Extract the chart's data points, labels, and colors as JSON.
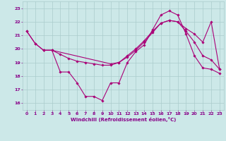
{
  "xlabel": "Windchill (Refroidissement éolien,°C)",
  "background_color": "#cce8e8",
  "line_color": "#aa0077",
  "grid_color": "#aacccc",
  "xlim": [
    -0.5,
    23.5
  ],
  "ylim": [
    15.5,
    23.5
  ],
  "xticks": [
    0,
    1,
    2,
    3,
    4,
    5,
    6,
    7,
    8,
    9,
    10,
    11,
    12,
    13,
    14,
    15,
    16,
    17,
    18,
    19,
    20,
    21,
    22,
    23
  ],
  "yticks": [
    16,
    17,
    18,
    19,
    20,
    21,
    22,
    23
  ],
  "series1_x": [
    0,
    1,
    2,
    3,
    4,
    5,
    6,
    7,
    8,
    9,
    10,
    11,
    12,
    13,
    14,
    15,
    16,
    17,
    18,
    19,
    20,
    21,
    22,
    23
  ],
  "series1_y": [
    21.3,
    20.4,
    19.9,
    19.9,
    18.3,
    18.3,
    17.5,
    16.5,
    16.5,
    16.2,
    17.5,
    17.5,
    19.0,
    19.8,
    20.3,
    21.4,
    22.5,
    22.8,
    22.5,
    21.1,
    19.5,
    18.6,
    18.5,
    18.2
  ],
  "series2_x": [
    2,
    3,
    10,
    11,
    12,
    13,
    14,
    15,
    16,
    17,
    18,
    19,
    20,
    21,
    22,
    23
  ],
  "series2_y": [
    19.9,
    19.9,
    18.9,
    19.0,
    19.5,
    20.0,
    20.6,
    21.3,
    21.9,
    22.1,
    22.0,
    21.5,
    21.1,
    20.5,
    22.0,
    18.5
  ],
  "series3_x": [
    0,
    1,
    2,
    3,
    4,
    5,
    6,
    7,
    8,
    9,
    10,
    11,
    12,
    13,
    14,
    15,
    16,
    17,
    18,
    19,
    20,
    21,
    22,
    23
  ],
  "series3_y": [
    21.3,
    20.4,
    19.9,
    19.9,
    19.6,
    19.3,
    19.1,
    19.0,
    18.9,
    18.8,
    18.8,
    19.0,
    19.4,
    19.9,
    20.5,
    21.2,
    21.9,
    22.1,
    22.0,
    21.3,
    20.5,
    19.5,
    19.2,
    18.5
  ]
}
